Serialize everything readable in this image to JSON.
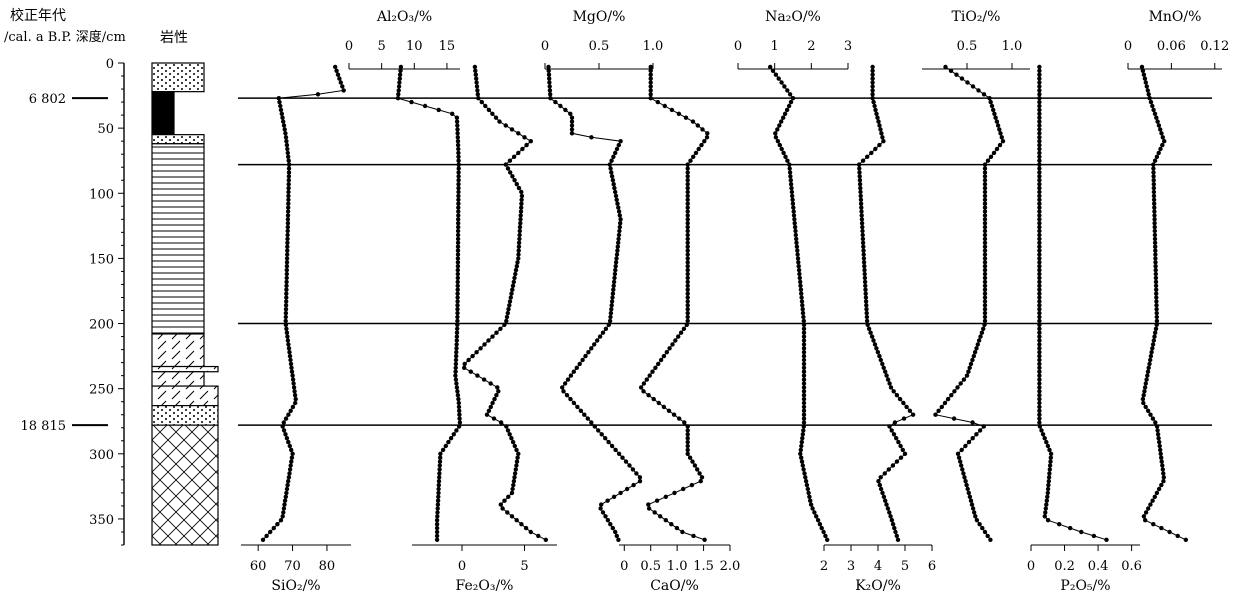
{
  "chart_data": {
    "type": "line",
    "headers": {
      "age_title": "校正年代",
      "age_unit": "/cal. a B.P.",
      "depth_label": "深度/cm",
      "lithology_label": "岩性"
    },
    "depth_axis": {
      "range": [
        0,
        370
      ],
      "ticks": [
        0,
        50,
        100,
        150,
        200,
        250,
        300,
        350
      ]
    },
    "boundaries": [
      {
        "depth": 27,
        "age": "6 802"
      },
      {
        "depth": 78,
        "age": ""
      },
      {
        "depth": 200,
        "age": ""
      },
      {
        "depth": 278,
        "age": "18 815"
      }
    ],
    "lithology": [
      {
        "top": 0,
        "bottom": 22,
        "pattern": "dots",
        "width": "half"
      },
      {
        "top": 22,
        "bottom": 55,
        "pattern": "black",
        "width": "narrow"
      },
      {
        "top": 55,
        "bottom": 62,
        "pattern": "dots",
        "width": "half"
      },
      {
        "top": 62,
        "bottom": 208,
        "pattern": "hlines",
        "width": "half"
      },
      {
        "top": 208,
        "bottom": 233,
        "pattern": "dash",
        "width": "half"
      },
      {
        "top": 233,
        "bottom": 237,
        "pattern": "dash",
        "width": "wide"
      },
      {
        "top": 237,
        "bottom": 248,
        "pattern": "dash",
        "width": "half"
      },
      {
        "top": 248,
        "bottom": 263,
        "pattern": "dash",
        "width": "full"
      },
      {
        "top": 263,
        "bottom": 278,
        "pattern": "dots",
        "width": "full"
      },
      {
        "top": 278,
        "bottom": 370,
        "pattern": "crosshatch",
        "width": "full"
      }
    ],
    "top_axes": [
      {
        "label": "Al₂O₃/%",
        "ticks": [
          "0",
          "5",
          "10",
          "15"
        ],
        "range": [
          0,
          17
        ]
      },
      {
        "label": "MgO/%",
        "ticks": [
          "0",
          "0.5",
          "1.0"
        ],
        "range": [
          0,
          1
        ]
      },
      {
        "label": "Na₂O/%",
        "ticks": [
          "0",
          "1",
          "2",
          "3"
        ],
        "range": [
          0,
          3
        ]
      },
      {
        "label": "TiO₂/%",
        "ticks": [
          "0.5",
          "1.0"
        ],
        "range": [
          0,
          1.2
        ]
      },
      {
        "label": "MnO/%",
        "ticks": [
          "0",
          "0.06",
          "0.12"
        ],
        "range": [
          0,
          0.13
        ]
      }
    ],
    "bottom_axes": [
      {
        "label": "SiO₂/%",
        "ticks": [
          "60",
          "70",
          "80"
        ],
        "range": [
          55,
          87
        ]
      },
      {
        "label": "Fe₂O₃/%",
        "ticks": [
          "0",
          "5"
        ],
        "range": [
          -4,
          7.6
        ]
      },
      {
        "label": "CaO/%",
        "ticks": [
          "0",
          "0.5",
          "1.0",
          "1.5",
          "2.0"
        ],
        "range": [
          -0.1,
          2
        ]
      },
      {
        "label": "K₂O/%",
        "ticks": [
          "2",
          "3",
          "4",
          "5",
          "6"
        ],
        "range": [
          2,
          6
        ]
      },
      {
        "label": "P₂O₅/%",
        "ticks": [
          "0",
          "0.2",
          "0.4",
          "0.6"
        ],
        "range": [
          0,
          0.65
        ]
      }
    ],
    "series": [
      {
        "key": "SiO2",
        "profile": [
          [
            0,
            82
          ],
          [
            22,
            85
          ],
          [
            27,
            66
          ],
          [
            55,
            68
          ],
          [
            78,
            69
          ],
          [
            200,
            68
          ],
          [
            260,
            71
          ],
          [
            278,
            67
          ],
          [
            300,
            70
          ],
          [
            350,
            67
          ],
          [
            370,
            60
          ]
        ]
      },
      {
        "key": "Al2O3",
        "profile": [
          [
            0,
            8
          ],
          [
            27,
            7.5
          ],
          [
            40,
            16.5
          ],
          [
            60,
            16.7
          ],
          [
            78,
            16.8
          ],
          [
            200,
            16.6
          ],
          [
            240,
            16.3
          ],
          [
            260,
            16.8
          ],
          [
            278,
            17
          ],
          [
            300,
            14
          ],
          [
            350,
            13.5
          ],
          [
            370,
            13.5
          ]
        ]
      },
      {
        "key": "Fe2O3",
        "profile": [
          [
            0,
            1
          ],
          [
            27,
            1.3
          ],
          [
            45,
            3
          ],
          [
            60,
            5.5
          ],
          [
            78,
            3.5
          ],
          [
            100,
            4.8
          ],
          [
            150,
            4.5
          ],
          [
            200,
            3.5
          ],
          [
            233,
            0
          ],
          [
            250,
            3
          ],
          [
            270,
            2
          ],
          [
            278,
            3.5
          ],
          [
            300,
            4.5
          ],
          [
            330,
            4
          ],
          [
            340,
            3
          ],
          [
            360,
            5.5
          ],
          [
            370,
            7.5
          ]
        ]
      },
      {
        "key": "MgO",
        "profile": [
          [
            0,
            0.03
          ],
          [
            27,
            0.05
          ],
          [
            40,
            0.25
          ],
          [
            55,
            0.25
          ],
          [
            60,
            0.7
          ],
          [
            78,
            0.6
          ],
          [
            120,
            0.7
          ],
          [
            200,
            0.6
          ],
          [
            250,
            0.15
          ],
          [
            278,
            0.45
          ],
          [
            320,
            0.9
          ],
          [
            340,
            0.5
          ],
          [
            360,
            0.65
          ],
          [
            370,
            0.7
          ]
        ]
      },
      {
        "key": "CaO",
        "profile": [
          [
            0,
            0.5
          ],
          [
            27,
            0.5
          ],
          [
            45,
            1.3
          ],
          [
            55,
            1.6
          ],
          [
            78,
            1.2
          ],
          [
            200,
            1.2
          ],
          [
            250,
            0.3
          ],
          [
            278,
            1.2
          ],
          [
            300,
            1.2
          ],
          [
            320,
            1.5
          ],
          [
            340,
            0.4
          ],
          [
            360,
            1.1
          ],
          [
            370,
            1.8
          ]
        ]
      },
      {
        "key": "Na2O",
        "profile": [
          [
            0,
            0.8
          ],
          [
            27,
            1.5
          ],
          [
            55,
            1.0
          ],
          [
            78,
            1.4
          ],
          [
            200,
            1.8
          ],
          [
            278,
            1.8
          ],
          [
            300,
            1.7
          ],
          [
            340,
            2.0
          ],
          [
            370,
            2.5
          ]
        ]
      },
      {
        "key": "K2O",
        "profile": [
          [
            0,
            3.8
          ],
          [
            27,
            3.8
          ],
          [
            60,
            4.2
          ],
          [
            78,
            3.3
          ],
          [
            200,
            3.6
          ],
          [
            250,
            4.5
          ],
          [
            270,
            5.3
          ],
          [
            278,
            4.4
          ],
          [
            300,
            5.0
          ],
          [
            320,
            4.0
          ],
          [
            350,
            4.5
          ],
          [
            370,
            4.8
          ]
        ]
      },
      {
        "key": "TiO2",
        "profile": [
          [
            0,
            0.2
          ],
          [
            27,
            0.75
          ],
          [
            60,
            0.9
          ],
          [
            78,
            0.7
          ],
          [
            200,
            0.7
          ],
          [
            240,
            0.5
          ],
          [
            270,
            0.15
          ],
          [
            278,
            0.7
          ],
          [
            300,
            0.4
          ],
          [
            350,
            0.6
          ],
          [
            370,
            0.8
          ]
        ]
      },
      {
        "key": "P2O5",
        "profile": [
          [
            0,
            0.05
          ],
          [
            200,
            0.05
          ],
          [
            278,
            0.05
          ],
          [
            300,
            0.12
          ],
          [
            330,
            0.1
          ],
          [
            350,
            0.08
          ],
          [
            360,
            0.3
          ],
          [
            370,
            0.55
          ]
        ]
      },
      {
        "key": "MnO",
        "profile": [
          [
            0,
            0.018
          ],
          [
            27,
            0.03
          ],
          [
            60,
            0.05
          ],
          [
            78,
            0.035
          ],
          [
            200,
            0.04
          ],
          [
            260,
            0.02
          ],
          [
            278,
            0.04
          ],
          [
            320,
            0.05
          ],
          [
            350,
            0.02
          ],
          [
            370,
            0.095
          ]
        ]
      }
    ]
  }
}
